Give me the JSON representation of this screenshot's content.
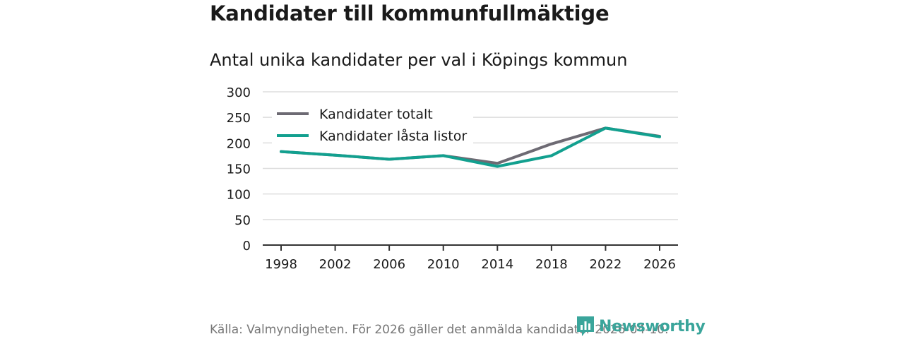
{
  "title": "Kandidater till kommunfullmäktige",
  "subtitle": "Antal unika kandidater per val i Köpings kommun",
  "source": "Källa: Valmyndigheten. För 2026 gäller det anmälda kandidater 2026-04-10.",
  "brand": "Newsworthy",
  "colors": {
    "total": "#6d6a73",
    "locked": "#12a08f",
    "grid": "#dddddd",
    "axis": "#333333"
  },
  "chart_data": {
    "type": "line",
    "title": "Antal unika kandidater per val i Köpings kommun",
    "x": [
      "1998",
      "2002",
      "2006",
      "2010",
      "2014",
      "2018",
      "2022",
      "2026"
    ],
    "ylim": [
      0,
      300
    ],
    "yticks": [
      "0",
      "50",
      "100",
      "150",
      "200",
      "250",
      "300"
    ],
    "grid": true,
    "legend": "top-left",
    "series": [
      {
        "name": "Kandidater totalt",
        "values": [
          183,
          176,
          168,
          175,
          160,
          198,
          229,
          213
        ]
      },
      {
        "name": "Kandidater låsta listor",
        "values": [
          183,
          176,
          168,
          175,
          154,
          175,
          229,
          212
        ]
      }
    ]
  }
}
